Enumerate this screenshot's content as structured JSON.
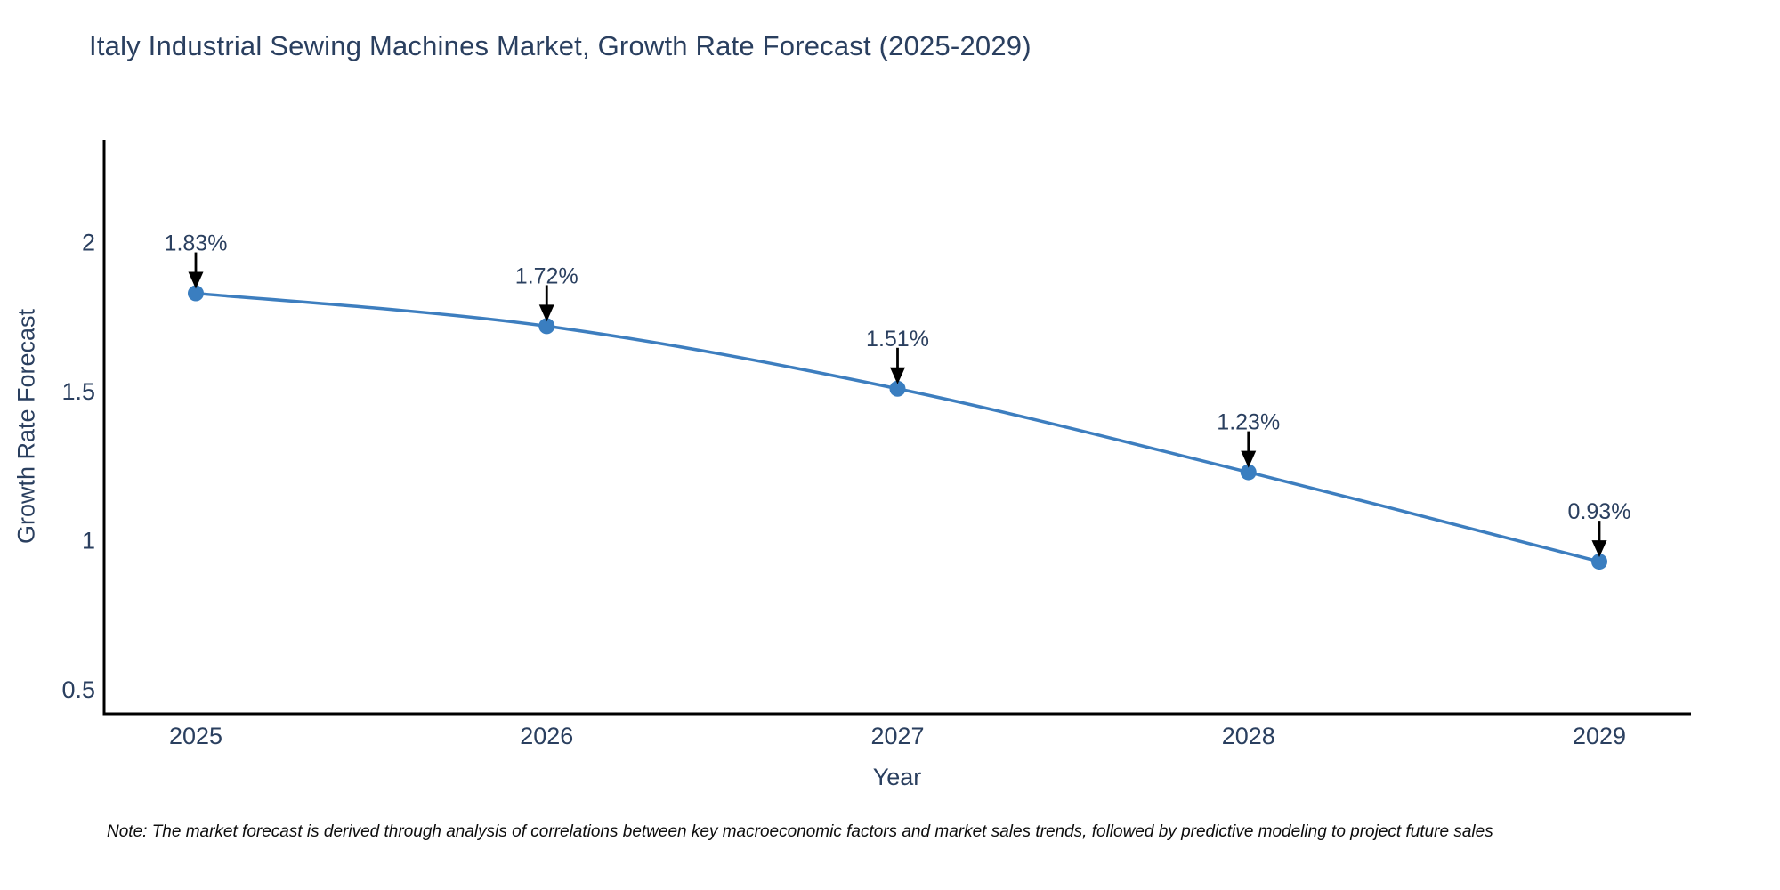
{
  "header": {
    "title": "Italy Industrial Sewing Machines Market, Growth Rate Forecast (2025-2029)"
  },
  "chart_data": {
    "type": "line",
    "title": "Italy Industrial Sewing Machines Market, Growth Rate Forecast (2025-2029)",
    "categories": [
      "2025",
      "2026",
      "2027",
      "2028",
      "2029"
    ],
    "series": [
      {
        "name": "Growth Rate Forecast",
        "values": [
          1.83,
          1.72,
          1.51,
          1.23,
          0.93
        ],
        "point_labels": [
          "1.83%",
          "1.72%",
          "1.51%",
          "1.23%",
          "0.93%"
        ]
      }
    ],
    "xlabel": "Year",
    "ylabel": "Growth Rate Forecast",
    "yticks": [
      0.5,
      1,
      1.5,
      2
    ],
    "ylim": [
      0.42,
      2.345
    ],
    "grid": false,
    "legend_position": "none",
    "line_shape": "spline",
    "annotations_have_arrows": true,
    "colors": {
      "line": "#3d7ebf",
      "marker": "#3a7ec0",
      "axis_line": "#000000",
      "tick_text": "#2a3f5f",
      "annotation_text": "#2a3f5f",
      "arrow": "#000000",
      "title_text": "#2a3f5f"
    }
  },
  "note": {
    "text": "Note: The market forecast is derived through analysis of correlations between key macroeconomic factors and market sales trends, followed by predictive modeling to project future sales"
  }
}
